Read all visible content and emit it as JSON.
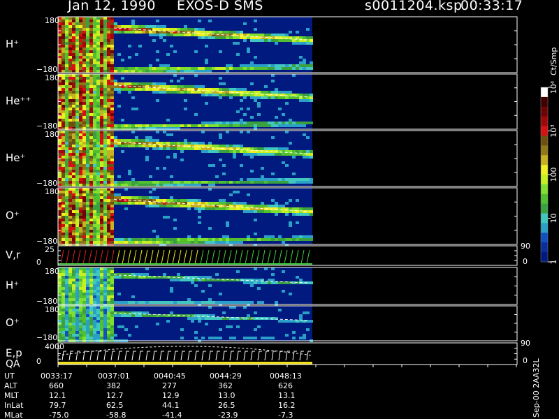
{
  "header": {
    "date": "Jan 12, 1990",
    "instrument": "EXOS-D SMS",
    "file": "s0011204.ksp",
    "time": "00:33:17"
  },
  "colorbar": {
    "unit_label": "Ct/Smp",
    "ticks": [
      {
        "label": "1",
        "value": 1
      },
      {
        "label": "10",
        "value": 10
      },
      {
        "label": "100",
        "value": 100
      },
      {
        "label": "10³",
        "value": 1000
      },
      {
        "label": "10⁴",
        "value": 10000
      }
    ],
    "colors": [
      "#001a80",
      "#0a2e9a",
      "#1050c0",
      "#2aa0c8",
      "#40c8c0",
      "#3aa040",
      "#50c030",
      "#80e030",
      "#c8f020",
      "#f0f020",
      "#c8b020",
      "#907818",
      "#705010",
      "#d81010",
      "#a00808",
      "#700404",
      "#400000",
      "#ffffff"
    ]
  },
  "footer": {
    "row_labels": [
      "UT",
      "ALT",
      "MLT",
      "InLat",
      "MLat"
    ],
    "columns": [
      {
        "UT": "0033:17",
        "ALT": "660",
        "MLT": "12.1",
        "InLat": "79.7",
        "MLat": "-75.0"
      },
      {
        "UT": "0037:01",
        "ALT": "382",
        "MLT": "12.7",
        "InLat": "62.5",
        "MLat": "-58.8"
      },
      {
        "UT": "0040:45",
        "ALT": "277",
        "MLT": "12.9",
        "InLat": "44.1",
        "MLat": "-41.4"
      },
      {
        "UT": "0044:29",
        "ALT": "362",
        "MLT": "13.0",
        "InLat": "26.5",
        "MLat": "-23.9"
      },
      {
        "UT": "0048:13",
        "ALT": "626",
        "MLT": "13.1",
        "InLat": "16.2",
        "MLat": "-7.3"
      }
    ],
    "side_text": "Sep-00  2AA32L"
  },
  "chart_data": {
    "type": "heatmap",
    "panels": [
      {
        "label": "H⁺",
        "ylim": [
          -180,
          180
        ],
        "ticks": [
          "180",
          "−180"
        ],
        "kind": "spectrogram",
        "intensity": 1.0
      },
      {
        "label": "He⁺⁺",
        "ylim": [
          -180,
          180
        ],
        "ticks": [
          "180",
          "−180"
        ],
        "kind": "spectrogram",
        "intensity": 0.95
      },
      {
        "label": "He⁺",
        "ylim": [
          -180,
          180
        ],
        "ticks": [
          "180",
          "−180"
        ],
        "kind": "spectrogram",
        "intensity": 0.9
      },
      {
        "label": "O⁺",
        "ylim": [
          -180,
          180
        ],
        "ticks": [
          "180",
          "−180"
        ],
        "kind": "spectrogram",
        "intensity": 1.0
      },
      {
        "label": "V,r",
        "ylim": [
          0,
          25
        ],
        "ticks": [
          "25",
          "0"
        ],
        "right_ticks": [
          "90",
          "0"
        ],
        "kind": "vectors"
      },
      {
        "label": "H⁺",
        "ylim": [
          -180,
          180
        ],
        "ticks": [
          "180",
          "−180"
        ],
        "kind": "spectrogram",
        "intensity": 0.55
      },
      {
        "label": "O⁺",
        "ylim": [
          -180,
          180
        ],
        "ticks": [
          "180",
          "−180"
        ],
        "kind": "spectrogram",
        "intensity": 0.5
      },
      {
        "label": "E,p",
        "label2": "QA",
        "ylim": [
          0,
          4000
        ],
        "ticks": [
          "4000",
          "0"
        ],
        "right_ticks": [
          "90",
          "0"
        ],
        "kind": "energy"
      }
    ]
  }
}
